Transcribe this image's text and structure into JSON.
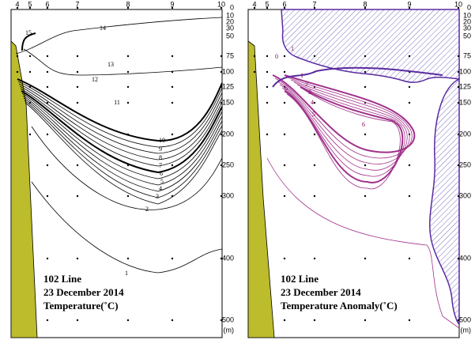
{
  "panels": [
    {
      "stations": [
        "4",
        "5",
        "6",
        "7",
        "8",
        "9",
        "10"
      ],
      "depths": [
        "0",
        "10",
        "20",
        "30",
        "50",
        "75",
        "100",
        "125",
        "150",
        "200",
        "250",
        "300",
        "400",
        "500"
      ],
      "unit": "(m)",
      "caption": [
        "102 Line",
        "23 December 2014",
        "Temperature(˚C)"
      ],
      "contour_labels": [
        "15",
        "14",
        "13",
        "12",
        "11",
        "10",
        "9",
        "8",
        "7",
        "6",
        "5",
        "4",
        "3",
        "2",
        "1"
      ]
    },
    {
      "stations": [
        "4",
        "5",
        "6",
        "7",
        "8",
        "9",
        "10"
      ],
      "depths": [
        "0",
        "10",
        "20",
        "30",
        "50",
        "75",
        "100",
        "125",
        "150",
        "200",
        "250",
        "300",
        "400",
        "500"
      ],
      "unit": "(m)",
      "caption": [
        "102 Line",
        "23 December 2014",
        "Temperature Anomaly(˚C)"
      ],
      "contour_labels": [
        "1",
        "0",
        "1",
        "2",
        "3",
        "4",
        "5",
        "6",
        "6"
      ]
    }
  ]
}
